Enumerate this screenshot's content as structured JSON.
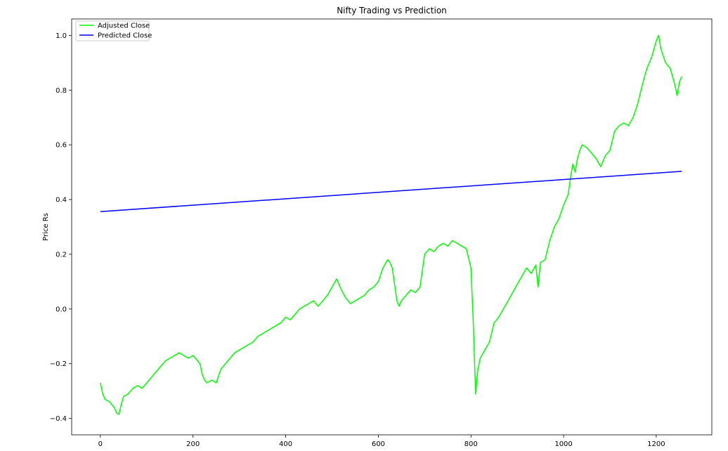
{
  "chart_data": {
    "type": "line",
    "title": "Nifty Trading vs Prediction",
    "xlabel": "",
    "ylabel": "Price Rs",
    "xlim": [
      -62,
      1320
    ],
    "ylim": [
      -0.46,
      1.06
    ],
    "xticks": [
      0,
      200,
      400,
      600,
      800,
      1000,
      1200
    ],
    "yticks": [
      -0.4,
      -0.2,
      0.0,
      0.2,
      0.4,
      0.6,
      0.8,
      1.0
    ],
    "ytick_labels": [
      "−0.4",
      "−0.2",
      "0.0",
      "0.2",
      "0.4",
      "0.6",
      "0.8",
      "1.0"
    ],
    "grid": false,
    "legend_position": "top-left",
    "series": [
      {
        "name": "Adjusted Close",
        "color": "#00ff00",
        "x": [
          0,
          5,
          10,
          20,
          30,
          35,
          40,
          45,
          50,
          60,
          70,
          80,
          90,
          100,
          110,
          120,
          130,
          140,
          150,
          160,
          170,
          180,
          190,
          200,
          210,
          215,
          220,
          225,
          230,
          240,
          250,
          260,
          270,
          280,
          290,
          300,
          310,
          320,
          330,
          340,
          350,
          360,
          370,
          380,
          390,
          400,
          410,
          420,
          430,
          440,
          450,
          460,
          470,
          480,
          490,
          500,
          510,
          515,
          520,
          530,
          540,
          550,
          560,
          570,
          580,
          590,
          600,
          610,
          620,
          625,
          630,
          640,
          645,
          650,
          660,
          670,
          680,
          690,
          700,
          710,
          720,
          730,
          740,
          750,
          760,
          770,
          780,
          790,
          800,
          805,
          810,
          815,
          820,
          830,
          840,
          850,
          860,
          870,
          880,
          890,
          900,
          910,
          920,
          930,
          940,
          945,
          950,
          960,
          970,
          980,
          990,
          1000,
          1010,
          1015,
          1020,
          1025,
          1030,
          1035,
          1040,
          1050,
          1060,
          1070,
          1080,
          1090,
          1100,
          1110,
          1120,
          1130,
          1140,
          1150,
          1160,
          1170,
          1180,
          1190,
          1200,
          1205,
          1210,
          1220,
          1230,
          1240,
          1245,
          1250,
          1255
        ],
        "values": [
          -0.27,
          -0.31,
          -0.33,
          -0.34,
          -0.36,
          -0.38,
          -0.385,
          -0.35,
          -0.32,
          -0.31,
          -0.29,
          -0.28,
          -0.29,
          -0.27,
          -0.25,
          -0.23,
          -0.21,
          -0.19,
          -0.18,
          -0.17,
          -0.16,
          -0.17,
          -0.18,
          -0.17,
          -0.19,
          -0.2,
          -0.24,
          -0.26,
          -0.27,
          -0.26,
          -0.27,
          -0.22,
          -0.2,
          -0.18,
          -0.16,
          -0.15,
          -0.14,
          -0.13,
          -0.12,
          -0.1,
          -0.09,
          -0.08,
          -0.07,
          -0.06,
          -0.05,
          -0.03,
          -0.04,
          -0.02,
          0.0,
          0.01,
          0.02,
          0.03,
          0.01,
          0.03,
          0.05,
          0.08,
          0.11,
          0.09,
          0.07,
          0.04,
          0.02,
          0.03,
          0.04,
          0.05,
          0.07,
          0.08,
          0.1,
          0.15,
          0.18,
          0.17,
          0.15,
          0.03,
          0.01,
          0.03,
          0.05,
          0.07,
          0.06,
          0.08,
          0.2,
          0.22,
          0.21,
          0.23,
          0.24,
          0.23,
          0.25,
          0.24,
          0.23,
          0.22,
          0.15,
          -0.05,
          -0.31,
          -0.22,
          -0.18,
          -0.15,
          -0.12,
          -0.05,
          -0.03,
          0.0,
          0.03,
          0.06,
          0.09,
          0.12,
          0.15,
          0.13,
          0.16,
          0.08,
          0.17,
          0.18,
          0.25,
          0.3,
          0.33,
          0.38,
          0.42,
          0.48,
          0.53,
          0.5,
          0.55,
          0.58,
          0.6,
          0.59,
          0.57,
          0.55,
          0.52,
          0.56,
          0.58,
          0.65,
          0.67,
          0.68,
          0.67,
          0.7,
          0.75,
          0.82,
          0.88,
          0.92,
          0.98,
          1.0,
          0.95,
          0.9,
          0.88,
          0.82,
          0.78,
          0.83,
          0.85
        ]
      },
      {
        "name": "Predicted Close",
        "color": "#0000ff",
        "x": [
          0,
          1255
        ],
        "values": [
          0.356,
          0.503
        ]
      }
    ]
  }
}
